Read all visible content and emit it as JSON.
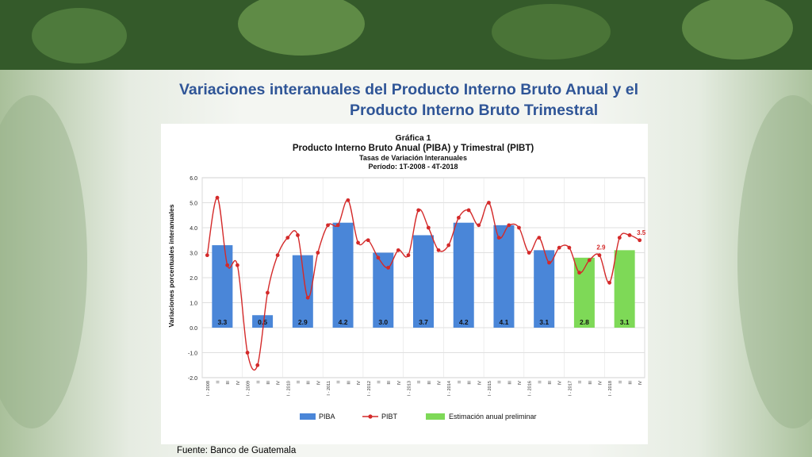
{
  "slide": {
    "title_line1": "Variaciones interanuales del Producto Interno Bruto Anual y el",
    "title_line2": "Producto Interno Bruto Trimestral",
    "source": "Fuente: Banco de Guatemala"
  },
  "colors": {
    "title": "#2f5597",
    "piba_bar": "#4a86d8",
    "preliminary_bar": "#7ed957",
    "pibt_line": "#d42a2a"
  },
  "chart_data": {
    "type": "bar",
    "header": "Gráfica 1",
    "title": "Producto Interno Bruto Anual (PIBA) y Trimestral (PIBT)",
    "subtitle": "Tasas de Variación Interanuales",
    "period": "Período: 1T-2008 - 4T-2018",
    "ylabel": "Variaciones porcentuales interanuales",
    "ylim": [
      -2.0,
      6.0
    ],
    "yticks": [
      "6.0",
      "5.0",
      "4.0",
      "3.0",
      "2.0",
      "1.0",
      "0.0",
      "-1.0",
      "-2.0"
    ],
    "years": [
      "2008",
      "2009",
      "2010",
      "2011",
      "2012",
      "2013",
      "2014",
      "2015",
      "2016",
      "2017",
      "2018"
    ],
    "quarter_labels": [
      "I - 2008",
      "II",
      "III",
      "IV",
      "I - 2009",
      "II",
      "III",
      "IV",
      "I - 2010",
      "II",
      "III",
      "IV",
      "I - 2011",
      "II",
      "III",
      "IV",
      "I - 2012",
      "II",
      "III",
      "IV",
      "I - 2013",
      "II",
      "III",
      "IV",
      "I - 2014",
      "II",
      "III",
      "IV",
      "I - 2015",
      "II",
      "III",
      "IV",
      "I - 2016",
      "II",
      "III",
      "IV",
      "I - 2017",
      "II",
      "III",
      "IV",
      "I - 2018",
      "II",
      "III",
      "IV"
    ],
    "series": [
      {
        "name": "PIBA",
        "type": "bar",
        "values": [
          3.3,
          0.5,
          2.9,
          4.2,
          3.0,
          3.7,
          4.2,
          4.1,
          3.1,
          null,
          null
        ],
        "labels": [
          "3.3",
          "0.5",
          "2.9",
          "4.2",
          "3.0",
          "3.7",
          "4.2",
          "4.1",
          "3.1",
          "",
          ""
        ]
      },
      {
        "name": "Estimación anual preliminar",
        "type": "bar",
        "values": [
          null,
          null,
          null,
          null,
          null,
          null,
          null,
          null,
          null,
          2.8,
          3.1
        ],
        "labels": [
          "",
          "",
          "",
          "",
          "",
          "",
          "",
          "",
          "",
          "2.8",
          "3.1"
        ]
      },
      {
        "name": "PIBT",
        "type": "line",
        "values": [
          2.9,
          5.2,
          2.5,
          2.5,
          -1.0,
          -1.5,
          1.4,
          2.9,
          3.6,
          3.7,
          1.2,
          3.0,
          4.1,
          4.1,
          5.1,
          3.4,
          3.5,
          2.8,
          2.4,
          3.1,
          2.9,
          4.7,
          4.0,
          3.1,
          3.3,
          4.4,
          4.7,
          4.1,
          5.0,
          3.6,
          4.1,
          4.0,
          3.0,
          3.6,
          2.6,
          3.2,
          3.2,
          2.2,
          2.7,
          2.9,
          1.8,
          3.6,
          3.7,
          3.5
        ]
      }
    ],
    "annotations": [
      {
        "series": "PIBT",
        "index": 39,
        "text": "2.9"
      },
      {
        "series": "PIBT",
        "index": 43,
        "text": "3.5"
      }
    ],
    "legend": {
      "position": "bottom",
      "entries": [
        {
          "label": "PIBA",
          "kind": "bar"
        },
        {
          "label": "PIBT",
          "kind": "line"
        },
        {
          "label": "Estimación anual preliminar",
          "kind": "bar"
        }
      ]
    },
    "grid": true
  }
}
